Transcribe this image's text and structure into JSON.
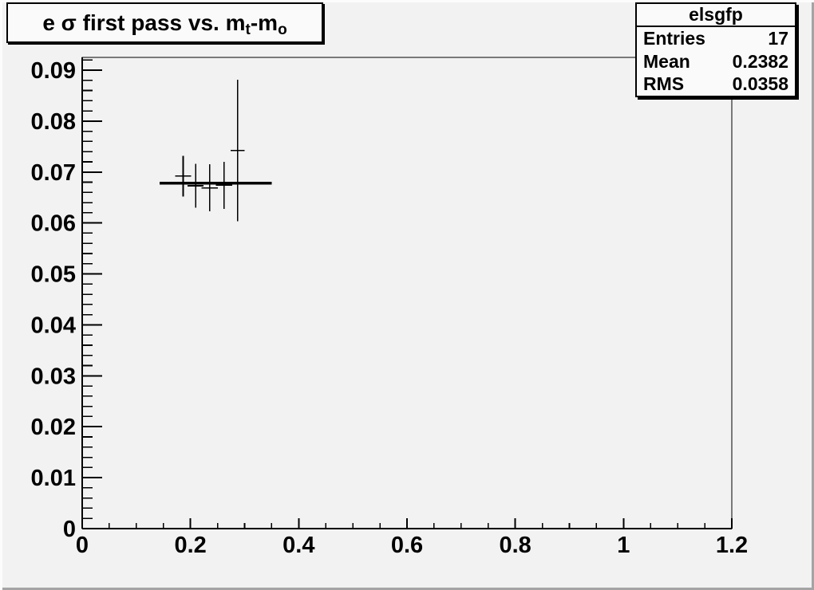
{
  "colors": {
    "canvas_bg": "#f2f2f2",
    "pave_bg": "#fafafa",
    "axis_line": "#000000",
    "data_line": "#000000",
    "fit_line": "#000000"
  },
  "title": {
    "parts": [
      {
        "text": "e σ first pass vs. m",
        "sub": false
      },
      {
        "text": "t",
        "sub": true
      },
      {
        "text": "-m",
        "sub": false
      },
      {
        "text": "o",
        "sub": true
      }
    ],
    "plain": "e sigma first pass vs. m_t-m_o"
  },
  "stats": {
    "name": "elsgfp",
    "rows": [
      {
        "label": "Entries",
        "value": "17"
      },
      {
        "label": "Mean",
        "value": "0.2382"
      },
      {
        "label": "RMS",
        "value": "0.0358"
      }
    ]
  },
  "chart_data": {
    "type": "scatter",
    "title": "e sigma first pass vs. m_t-m_o",
    "xlabel": "",
    "ylabel": "",
    "xlim": [
      0,
      1.2
    ],
    "ylim": [
      0,
      0.0925
    ],
    "grid": false,
    "legend": "none",
    "x_ticks": [
      {
        "v": 0,
        "label": "0"
      },
      {
        "v": 0.2,
        "label": "0.2"
      },
      {
        "v": 0.4,
        "label": "0.4"
      },
      {
        "v": 0.6,
        "label": "0.6"
      },
      {
        "v": 0.8,
        "label": "0.8"
      },
      {
        "v": 1,
        "label": "1"
      },
      {
        "v": 1.2,
        "label": "1.2"
      }
    ],
    "x_minor_step": 0.05,
    "y_ticks": [
      {
        "v": 0,
        "label": "0"
      },
      {
        "v": 0.01,
        "label": "0.01"
      },
      {
        "v": 0.02,
        "label": "0.02"
      },
      {
        "v": 0.03,
        "label": "0.03"
      },
      {
        "v": 0.04,
        "label": "0.04"
      },
      {
        "v": 0.05,
        "label": "0.05"
      },
      {
        "v": 0.06,
        "label": "0.06"
      },
      {
        "v": 0.07,
        "label": "0.07"
      },
      {
        "v": 0.08,
        "label": "0.08"
      },
      {
        "v": 0.09,
        "label": "0.09"
      }
    ],
    "y_minor_step": 0.002,
    "points": [
      {
        "x": 0.1865,
        "y": 0.0692,
        "xerr": 0.0148,
        "yerr": 0.004
      },
      {
        "x": 0.2095,
        "y": 0.0673,
        "xerr": 0.0148,
        "yerr": 0.0043
      },
      {
        "x": 0.2355,
        "y": 0.0669,
        "xerr": 0.0148,
        "yerr": 0.0046
      },
      {
        "x": 0.262,
        "y": 0.0674,
        "xerr": 0.0148,
        "yerr": 0.0046
      },
      {
        "x": 0.287,
        "y": 0.0742,
        "xerr": 0.013,
        "yerr": 0.0139
      }
    ],
    "fit_line": {
      "y": 0.0678,
      "x1": 0.143,
      "x2": 0.35
    }
  }
}
